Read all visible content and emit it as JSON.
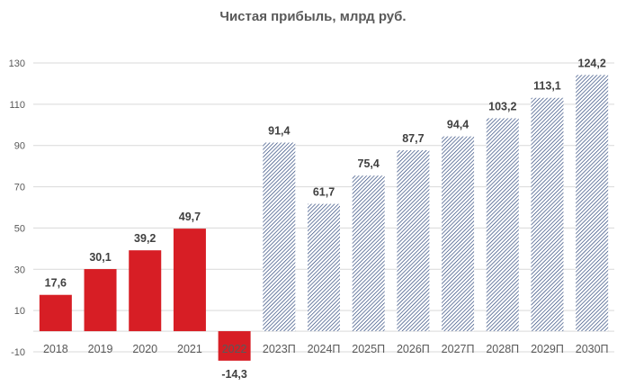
{
  "chart_data": {
    "type": "bar",
    "title": "Чистая прибыль, млрд руб.",
    "xlabel": "",
    "ylabel": "",
    "ylim": [
      -10,
      130
    ],
    "yticks": [
      -10,
      10,
      30,
      50,
      70,
      90,
      110,
      130
    ],
    "grid": true,
    "categories": [
      "2018",
      "2019",
      "2020",
      "2021",
      "2022",
      "2023П",
      "2024П",
      "2025П",
      "2026П",
      "2027П",
      "2028П",
      "2029П",
      "2030П"
    ],
    "values": [
      17.6,
      30.1,
      39.2,
      49.7,
      -14.3,
      91.4,
      61.7,
      75.4,
      87.7,
      94.4,
      103.2,
      113.1,
      124.2
    ],
    "labels": [
      "17,6",
      "30,1",
      "39,2",
      "49,7",
      "-14,3",
      "91,4",
      "61,7",
      "75,4",
      "87,7",
      "94,4",
      "103,2",
      "113,1",
      "124,2"
    ],
    "kind": [
      "actual",
      "actual",
      "actual",
      "actual",
      "actual",
      "forecast",
      "forecast",
      "forecast",
      "forecast",
      "forecast",
      "forecast",
      "forecast",
      "forecast"
    ],
    "colors": {
      "actual": "#d71e25",
      "forecast_hatch": "#1f3b73",
      "grid": "#d9d9d9",
      "text": "#595959"
    }
  }
}
